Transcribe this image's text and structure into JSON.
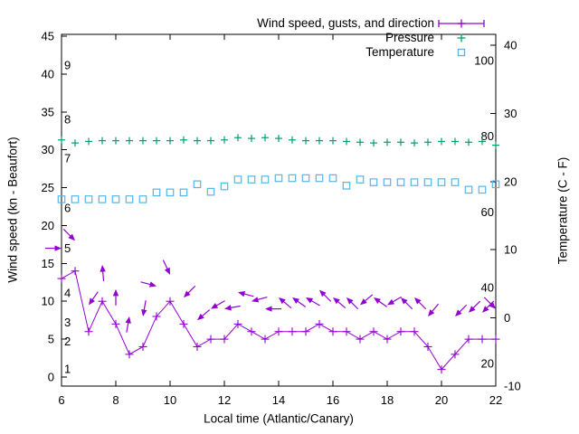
{
  "chart": {
    "x_label": "Local time (Atlantic/Canary)",
    "y_label": "Wind speed (kn - Beaufort)",
    "y2_label": "Temperature (C - F)",
    "background": "#ffffff",
    "axis_color": "#000000",
    "legend": [
      {
        "label": "Wind speed, gusts, and direction",
        "series": "wind",
        "color": "#9400d3",
        "marker": "line-with-plus"
      },
      {
        "label": "Pressure",
        "series": "pressure",
        "color": "#009e73",
        "marker": "plus"
      },
      {
        "label": "Temperature",
        "series": "temperature",
        "color": "#56b4e9",
        "marker": "open-square"
      }
    ]
  },
  "chart_data": {
    "type": "line",
    "title": "Wind speed, gusts, and direction",
    "xlabel": "Local time (Atlantic/Canary)",
    "ylabel": "Wind speed (kn - Beaufort)",
    "y2label": "Temperature (C - F)",
    "x_range": [
      6,
      22
    ],
    "y_left_range": [
      -1.2,
      45.3
    ],
    "y_right_range_C": [
      -10,
      41.6
    ],
    "grid": false,
    "legend_position": "top-right-inside",
    "x_ticks": [
      6,
      8,
      10,
      12,
      14,
      16,
      18,
      20,
      22
    ],
    "y_ticks": [
      0,
      5,
      10,
      15,
      20,
      25,
      30,
      35,
      40,
      45
    ],
    "y2_ticks_C": [
      -10,
      0,
      10,
      20,
      30,
      40
    ],
    "beaufort_inner_labels": [
      {
        "label": "1",
        "kn": 1.1
      },
      {
        "label": "2",
        "kn": 4.7
      },
      {
        "label": "3",
        "kn": 7.2
      },
      {
        "label": "4",
        "kn": 11.1
      },
      {
        "label": "5",
        "kn": 17.0
      },
      {
        "label": "6",
        "kn": 22.3
      },
      {
        "label": "7",
        "kn": 28.9
      },
      {
        "label": "8",
        "kn": 34.0
      },
      {
        "label": "9",
        "kn": 41.2
      }
    ],
    "fahrenheit_inner_labels": [
      {
        "label": "20",
        "F": 20
      },
      {
        "label": "40",
        "F": 40
      },
      {
        "label": "60",
        "F": 60
      },
      {
        "label": "80",
        "F": 80
      },
      {
        "label": "100",
        "F": 100
      }
    ],
    "x": [
      6,
      6.5,
      7,
      7.5,
      8,
      8.5,
      9,
      9.5,
      10,
      10.5,
      11,
      11.5,
      12,
      12.5,
      13,
      13.5,
      14,
      14.5,
      15,
      15.5,
      16,
      16.5,
      17,
      17.5,
      18,
      18.5,
      19,
      19.5,
      20,
      20.5,
      21,
      21.5,
      22
    ],
    "series": [
      {
        "name": "Wind speed (kn)",
        "axis": "left",
        "color": "#9400d3",
        "style": "line+plus",
        "values": [
          13,
          14,
          6,
          10,
          7,
          3,
          4,
          8,
          10,
          7,
          4,
          5,
          5,
          7,
          6,
          5,
          6,
          6,
          6,
          7,
          6,
          6,
          5,
          6,
          5,
          6,
          6,
          4,
          1,
          3,
          5,
          5,
          5
        ]
      },
      {
        "name": "Wind gusts with direction arrows (kn)",
        "axis": "left",
        "color": "#9400d3",
        "style": "arrows",
        "values": [
          17,
          18,
          9.5,
          14.8,
          11.6,
          8,
          8,
          12,
          13.5,
          10.5,
          7.5,
          9,
          9,
          11.2,
          10,
          9,
          10.5,
          10.5,
          10.5,
          11.5,
          10.5,
          10.5,
          9.5,
          10.5,
          9.5,
          10.5,
          10.5,
          8,
          null,
          8,
          8.5,
          8.5,
          9
        ],
        "arrow_bearing_deg_screen": [
          90,
          135,
          215,
          355,
          0,
          10,
          190,
          105,
          155,
          225,
          230,
          240,
          260,
          285,
          255,
          270,
          310,
          305,
          300,
          315,
          310,
          315,
          230,
          305,
          240,
          315,
          315,
          220,
          null,
          225,
          225,
          225,
          135
        ]
      },
      {
        "name": "Pressure",
        "axis": "left",
        "color": "#009e73",
        "style": "plus",
        "values": [
          31.3,
          30.9,
          31.1,
          31.2,
          31.2,
          31.2,
          31.2,
          31.2,
          31.2,
          31.3,
          31.2,
          31.2,
          31.3,
          31.6,
          31.5,
          31.6,
          31.5,
          31.3,
          31.2,
          31.2,
          31.2,
          31.1,
          31.0,
          30.9,
          31.0,
          31.0,
          30.9,
          31.0,
          31.1,
          31.1,
          31.0,
          31.1,
          30.6
        ]
      },
      {
        "name": "Temperature (C)",
        "axis": "right",
        "color": "#56b4e9",
        "style": "open-square",
        "values": [
          17.4,
          17.4,
          17.4,
          17.4,
          17.4,
          17.4,
          17.4,
          18.4,
          18.4,
          18.4,
          19.6,
          18.5,
          19.3,
          20.3,
          20.3,
          20.3,
          20.5,
          20.5,
          20.5,
          20.5,
          20.5,
          19.4,
          20.3,
          19.9,
          19.9,
          19.9,
          19.9,
          19.9,
          19.9,
          19.9,
          18.8,
          18.8,
          19.6
        ]
      }
    ]
  }
}
